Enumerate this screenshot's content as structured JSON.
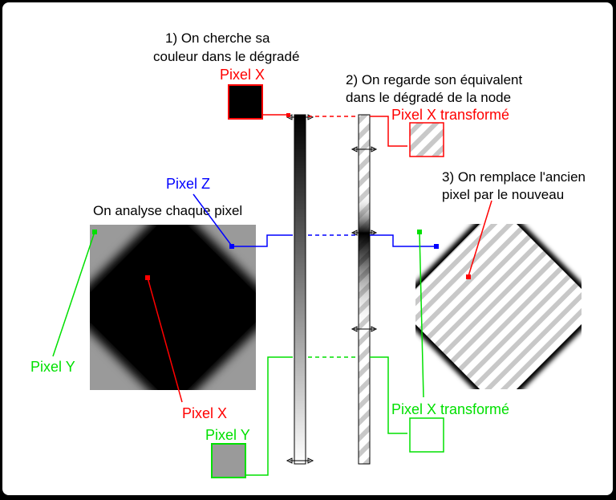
{
  "colors": {
    "red": "#ff0000",
    "blue": "#0000ff",
    "green": "#00e000",
    "frame_bg": "#ffffff",
    "outer_bg": "#000000"
  },
  "steps": {
    "step1_line1": "1) On cherche sa",
    "step1_line2": "couleur dans le dégradé",
    "step2_line1": "2) On regarde son équivalent",
    "step2_line2": "dans le dégradé de la node",
    "step3_line1": "3) On remplace l'ancien",
    "step3_line2": "pixel par le nouveau"
  },
  "labels": {
    "analyse": "On analyse chaque pixel",
    "pixel_x_top": "Pixel X",
    "pixel_x_transformed_red": "Pixel X transformé",
    "pixel_z": "Pixel Z",
    "pixel_y_left": "Pixel Y",
    "pixel_x_bottom": "Pixel X",
    "pixel_y_bottom": "Pixel Y",
    "pixel_x_transformed_green": "Pixel X transformé"
  }
}
